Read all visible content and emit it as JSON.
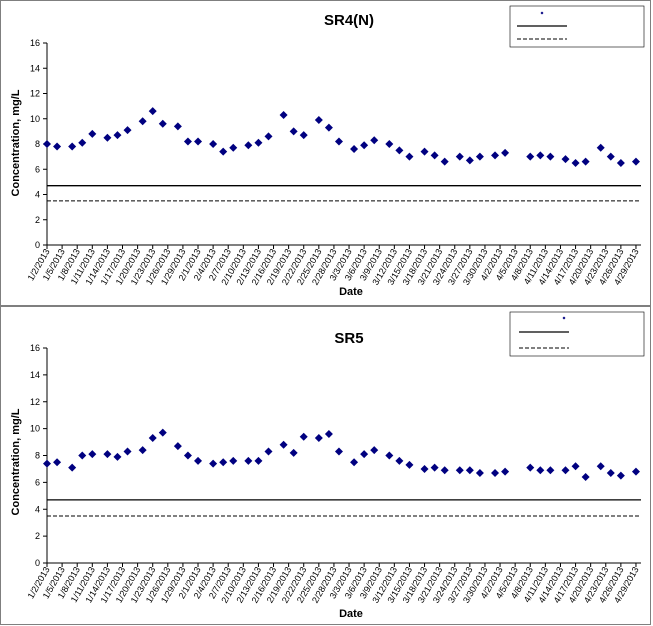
{
  "chart_data": [
    {
      "type": "scatter",
      "title": "SR4(N)",
      "xlabel": "Date",
      "ylabel": "Concentration, mg/L",
      "ylim": [
        0,
        16
      ],
      "yticks": [
        "0",
        "2",
        "4",
        "6",
        "8",
        "10",
        "12",
        "14",
        "16"
      ],
      "xlim": [
        "2013-01-02",
        "2013-04-30"
      ],
      "x_tick_labels": [
        "1/2/2013",
        "1/5/2013",
        "1/8/2013",
        "1/11/2013",
        "1/14/2013",
        "1/17/2013",
        "1/20/2013",
        "1/23/2013",
        "1/26/2013",
        "1/29/2013",
        "2/1/2013",
        "2/4/2013",
        "2/7/2013",
        "2/10/2013",
        "2/13/2013",
        "2/16/2013",
        "2/19/2013",
        "2/22/2013",
        "2/25/2013",
        "2/28/2013",
        "3/3/2013",
        "3/6/2013",
        "3/9/2013",
        "3/12/2013",
        "3/15/2013",
        "3/18/2013",
        "3/21/2013",
        "3/24/2013",
        "3/27/2013",
        "3/30/2013",
        "4/2/2013",
        "4/5/2013",
        "4/8/2013",
        "4/11/2013",
        "4/14/2013",
        "4/17/2013",
        "4/20/2013",
        "4/23/2013",
        "4/26/2013",
        "4/29/2013"
      ],
      "grid": false,
      "legend": "top-right",
      "series": [
        {
          "name": "",
          "color": "#000080",
          "marker": "diamond",
          "points": [
            {
              "x": "2013-01-02",
              "y": 8.0
            },
            {
              "x": "2013-01-04",
              "y": 7.8
            },
            {
              "x": "2013-01-07",
              "y": 7.8
            },
            {
              "x": "2013-01-09",
              "y": 8.1
            },
            {
              "x": "2013-01-11",
              "y": 8.8
            },
            {
              "x": "2013-01-14",
              "y": 8.5
            },
            {
              "x": "2013-01-16",
              "y": 8.7
            },
            {
              "x": "2013-01-18",
              "y": 9.1
            },
            {
              "x": "2013-01-21",
              "y": 9.8
            },
            {
              "x": "2013-01-23",
              "y": 10.6
            },
            {
              "x": "2013-01-25",
              "y": 9.6
            },
            {
              "x": "2013-01-28",
              "y": 9.4
            },
            {
              "x": "2013-01-30",
              "y": 8.2
            },
            {
              "x": "2013-02-01",
              "y": 8.2
            },
            {
              "x": "2013-02-04",
              "y": 8.0
            },
            {
              "x": "2013-02-06",
              "y": 7.4
            },
            {
              "x": "2013-02-08",
              "y": 7.7
            },
            {
              "x": "2013-02-11",
              "y": 7.9
            },
            {
              "x": "2013-02-13",
              "y": 8.1
            },
            {
              "x": "2013-02-15",
              "y": 8.6
            },
            {
              "x": "2013-02-18",
              "y": 10.3
            },
            {
              "x": "2013-02-20",
              "y": 9.0
            },
            {
              "x": "2013-02-22",
              "y": 8.7
            },
            {
              "x": "2013-02-25",
              "y": 9.9
            },
            {
              "x": "2013-02-27",
              "y": 9.3
            },
            {
              "x": "2013-03-01",
              "y": 8.2
            },
            {
              "x": "2013-03-04",
              "y": 7.6
            },
            {
              "x": "2013-03-06",
              "y": 7.9
            },
            {
              "x": "2013-03-08",
              "y": 8.3
            },
            {
              "x": "2013-03-11",
              "y": 8.0
            },
            {
              "x": "2013-03-13",
              "y": 7.5
            },
            {
              "x": "2013-03-15",
              "y": 7.0
            },
            {
              "x": "2013-03-18",
              "y": 7.4
            },
            {
              "x": "2013-03-20",
              "y": 7.1
            },
            {
              "x": "2013-03-22",
              "y": 6.6
            },
            {
              "x": "2013-03-25",
              "y": 7.0
            },
            {
              "x": "2013-03-27",
              "y": 6.7
            },
            {
              "x": "2013-03-29",
              "y": 7.0
            },
            {
              "x": "2013-04-01",
              "y": 7.1
            },
            {
              "x": "2013-04-03",
              "y": 7.3
            },
            {
              "x": "2013-04-08",
              "y": 7.0
            },
            {
              "x": "2013-04-10",
              "y": 7.1
            },
            {
              "x": "2013-04-12",
              "y": 7.0
            },
            {
              "x": "2013-04-15",
              "y": 6.8
            },
            {
              "x": "2013-04-17",
              "y": 6.5
            },
            {
              "x": "2013-04-19",
              "y": 6.6
            },
            {
              "x": "2013-04-22",
              "y": 7.7
            },
            {
              "x": "2013-04-24",
              "y": 7.0
            },
            {
              "x": "2013-04-26",
              "y": 6.5
            },
            {
              "x": "2013-04-29",
              "y": 6.6
            }
          ]
        }
      ],
      "reference_lines": [
        {
          "y": 4.7,
          "style": "solid"
        },
        {
          "y": 3.5,
          "style": "dashed"
        }
      ]
    },
    {
      "type": "scatter",
      "title": "SR5",
      "xlabel": "Date",
      "ylabel": "Concentration, mg/L",
      "ylim": [
        0,
        16
      ],
      "yticks": [
        "0",
        "2",
        "4",
        "6",
        "8",
        "10",
        "12",
        "14",
        "16"
      ],
      "xlim": [
        "2013-01-02",
        "2013-04-30"
      ],
      "x_tick_labels": [
        "1/2/2013",
        "1/5/2013",
        "1/8/2013",
        "1/11/2013",
        "1/14/2013",
        "1/17/2013",
        "1/20/2013",
        "1/23/2013",
        "1/26/2013",
        "1/29/2013",
        "2/1/2013",
        "2/4/2013",
        "2/7/2013",
        "2/10/2013",
        "2/13/2013",
        "2/16/2013",
        "2/19/2013",
        "2/22/2013",
        "2/25/2013",
        "2/28/2013",
        "3/3/2013",
        "3/6/2013",
        "3/9/2013",
        "3/12/2013",
        "3/15/2013",
        "3/18/2013",
        "3/21/2013",
        "3/24/2013",
        "3/27/2013",
        "3/30/2013",
        "4/2/2013",
        "4/5/2013",
        "4/8/2013",
        "4/11/2013",
        "4/14/2013",
        "4/17/2013",
        "4/20/2013",
        "4/23/2013",
        "4/26/2013",
        "4/29/2013"
      ],
      "grid": false,
      "legend": "top-right",
      "series": [
        {
          "name": "",
          "color": "#000080",
          "marker": "diamond",
          "points": [
            {
              "x": "2013-01-02",
              "y": 7.4
            },
            {
              "x": "2013-01-04",
              "y": 7.5
            },
            {
              "x": "2013-01-07",
              "y": 7.1
            },
            {
              "x": "2013-01-09",
              "y": 8.0
            },
            {
              "x": "2013-01-11",
              "y": 8.1
            },
            {
              "x": "2013-01-14",
              "y": 8.1
            },
            {
              "x": "2013-01-16",
              "y": 7.9
            },
            {
              "x": "2013-01-18",
              "y": 8.3
            },
            {
              "x": "2013-01-21",
              "y": 8.4
            },
            {
              "x": "2013-01-23",
              "y": 9.3
            },
            {
              "x": "2013-01-25",
              "y": 9.7
            },
            {
              "x": "2013-01-28",
              "y": 8.7
            },
            {
              "x": "2013-01-30",
              "y": 8.0
            },
            {
              "x": "2013-02-01",
              "y": 7.6
            },
            {
              "x": "2013-02-04",
              "y": 7.4
            },
            {
              "x": "2013-02-06",
              "y": 7.5
            },
            {
              "x": "2013-02-08",
              "y": 7.6
            },
            {
              "x": "2013-02-11",
              "y": 7.6
            },
            {
              "x": "2013-02-13",
              "y": 7.6
            },
            {
              "x": "2013-02-15",
              "y": 8.3
            },
            {
              "x": "2013-02-18",
              "y": 8.8
            },
            {
              "x": "2013-02-20",
              "y": 8.2
            },
            {
              "x": "2013-02-22",
              "y": 9.4
            },
            {
              "x": "2013-02-25",
              "y": 9.3
            },
            {
              "x": "2013-02-27",
              "y": 9.6
            },
            {
              "x": "2013-03-01",
              "y": 8.3
            },
            {
              "x": "2013-03-04",
              "y": 7.5
            },
            {
              "x": "2013-03-06",
              "y": 8.1
            },
            {
              "x": "2013-03-08",
              "y": 8.4
            },
            {
              "x": "2013-03-11",
              "y": 8.0
            },
            {
              "x": "2013-03-13",
              "y": 7.6
            },
            {
              "x": "2013-03-15",
              "y": 7.3
            },
            {
              "x": "2013-03-18",
              "y": 7.0
            },
            {
              "x": "2013-03-20",
              "y": 7.1
            },
            {
              "x": "2013-03-22",
              "y": 6.9
            },
            {
              "x": "2013-03-25",
              "y": 6.9
            },
            {
              "x": "2013-03-27",
              "y": 6.9
            },
            {
              "x": "2013-03-29",
              "y": 6.7
            },
            {
              "x": "2013-04-01",
              "y": 6.7
            },
            {
              "x": "2013-04-03",
              "y": 6.8
            },
            {
              "x": "2013-04-08",
              "y": 7.1
            },
            {
              "x": "2013-04-10",
              "y": 6.9
            },
            {
              "x": "2013-04-12",
              "y": 6.9
            },
            {
              "x": "2013-04-15",
              "y": 6.9
            },
            {
              "x": "2013-04-17",
              "y": 7.2
            },
            {
              "x": "2013-04-19",
              "y": 6.4
            },
            {
              "x": "2013-04-22",
              "y": 7.2
            },
            {
              "x": "2013-04-24",
              "y": 6.7
            },
            {
              "x": "2013-04-26",
              "y": 6.5
            },
            {
              "x": "2013-04-29",
              "y": 6.8
            }
          ]
        }
      ],
      "reference_lines": [
        {
          "y": 4.7,
          "style": "solid"
        },
        {
          "y": 3.5,
          "style": "dashed"
        }
      ]
    }
  ]
}
